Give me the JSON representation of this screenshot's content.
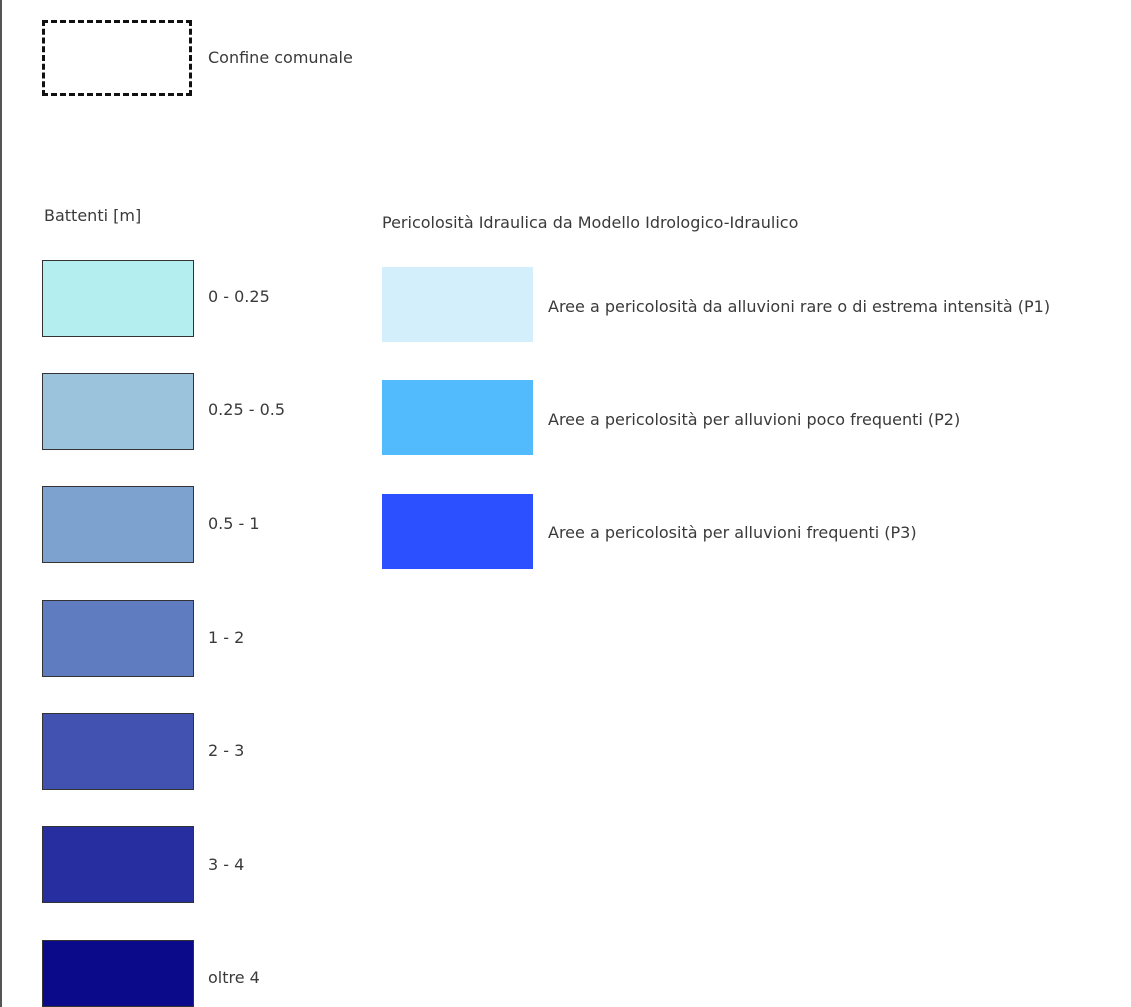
{
  "boundary": {
    "label": "Confine comunale"
  },
  "depth_legend": {
    "title": "Battenti [m]",
    "items": [
      {
        "label": "0 - 0.25",
        "color": "#b4eeee"
      },
      {
        "label": "0.25 - 0.5",
        "color": "#9bc4dc"
      },
      {
        "label": "0.5 - 1",
        "color": "#7ea2d0"
      },
      {
        "label": "1 - 2",
        "color": "#5f7cc0"
      },
      {
        "label": "2 - 3",
        "color": "#4252b0"
      },
      {
        "label": "3 - 4",
        "color": "#262ea0"
      },
      {
        "label": "oltre 4",
        "color": "#0a0a8a"
      }
    ]
  },
  "hazard_legend": {
    "title": "Pericolosità Idraulica da Modello Idrologico-Idraulico",
    "items": [
      {
        "label": "Aree a pericolosità da alluvioni rare o di estrema intensità (P1)",
        "color": "#d3effb"
      },
      {
        "label": "Aree a pericolosità per alluvioni poco frequenti (P2)",
        "color": "#52bbfd"
      },
      {
        "label": "Aree a pericolosità per alluvioni frequenti (P3)",
        "color": "#2c50ff"
      }
    ]
  }
}
